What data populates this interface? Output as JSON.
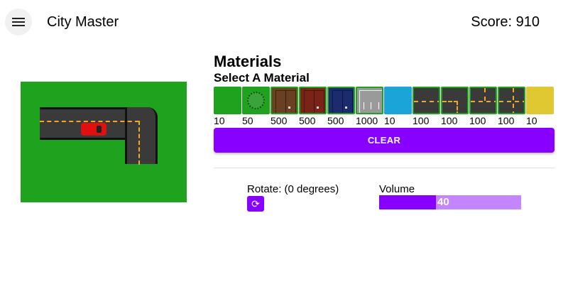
{
  "app": {
    "title": "City Master",
    "score_text": "Score: 910"
  },
  "materials": {
    "heading": "Materials",
    "subheading": "Select A Material",
    "items": [
      {
        "kind": "grass",
        "price": "10",
        "color": "#1fa31f"
      },
      {
        "kind": "tree",
        "price": "50",
        "color": "#1fa31f"
      },
      {
        "kind": "brown-building",
        "price": "500",
        "color": "#6b3f22"
      },
      {
        "kind": "red-building",
        "price": "500",
        "color": "#7a2418"
      },
      {
        "kind": "blue-building",
        "price": "500",
        "color": "#1c2a6e"
      },
      {
        "kind": "parking",
        "price": "1000",
        "color": "#9a9a9a"
      },
      {
        "kind": "water",
        "price": "10",
        "color": "#1aa4d8"
      },
      {
        "kind": "road-straight",
        "price": "100",
        "color": "#3a3a3a"
      },
      {
        "kind": "road-curve",
        "price": "100",
        "color": "#3a3a3a"
      },
      {
        "kind": "road-t-junction",
        "price": "100",
        "color": "#3a3a3a"
      },
      {
        "kind": "road-cross",
        "price": "100",
        "color": "#3a3a3a"
      },
      {
        "kind": "sand",
        "price": "10",
        "color": "#e0c832"
      }
    ],
    "clear_label": "CLEAR"
  },
  "controls": {
    "rotate_label": "Rotate: (0 degrees)",
    "volume_label": "Volume",
    "volume_value": "40",
    "volume_percent": 40
  },
  "colors": {
    "accent": "#8800ff",
    "accent_light": "#c386ff",
    "grass": "#1fa31f",
    "road": "#3a3a3a",
    "road_line": "#f5a623"
  }
}
